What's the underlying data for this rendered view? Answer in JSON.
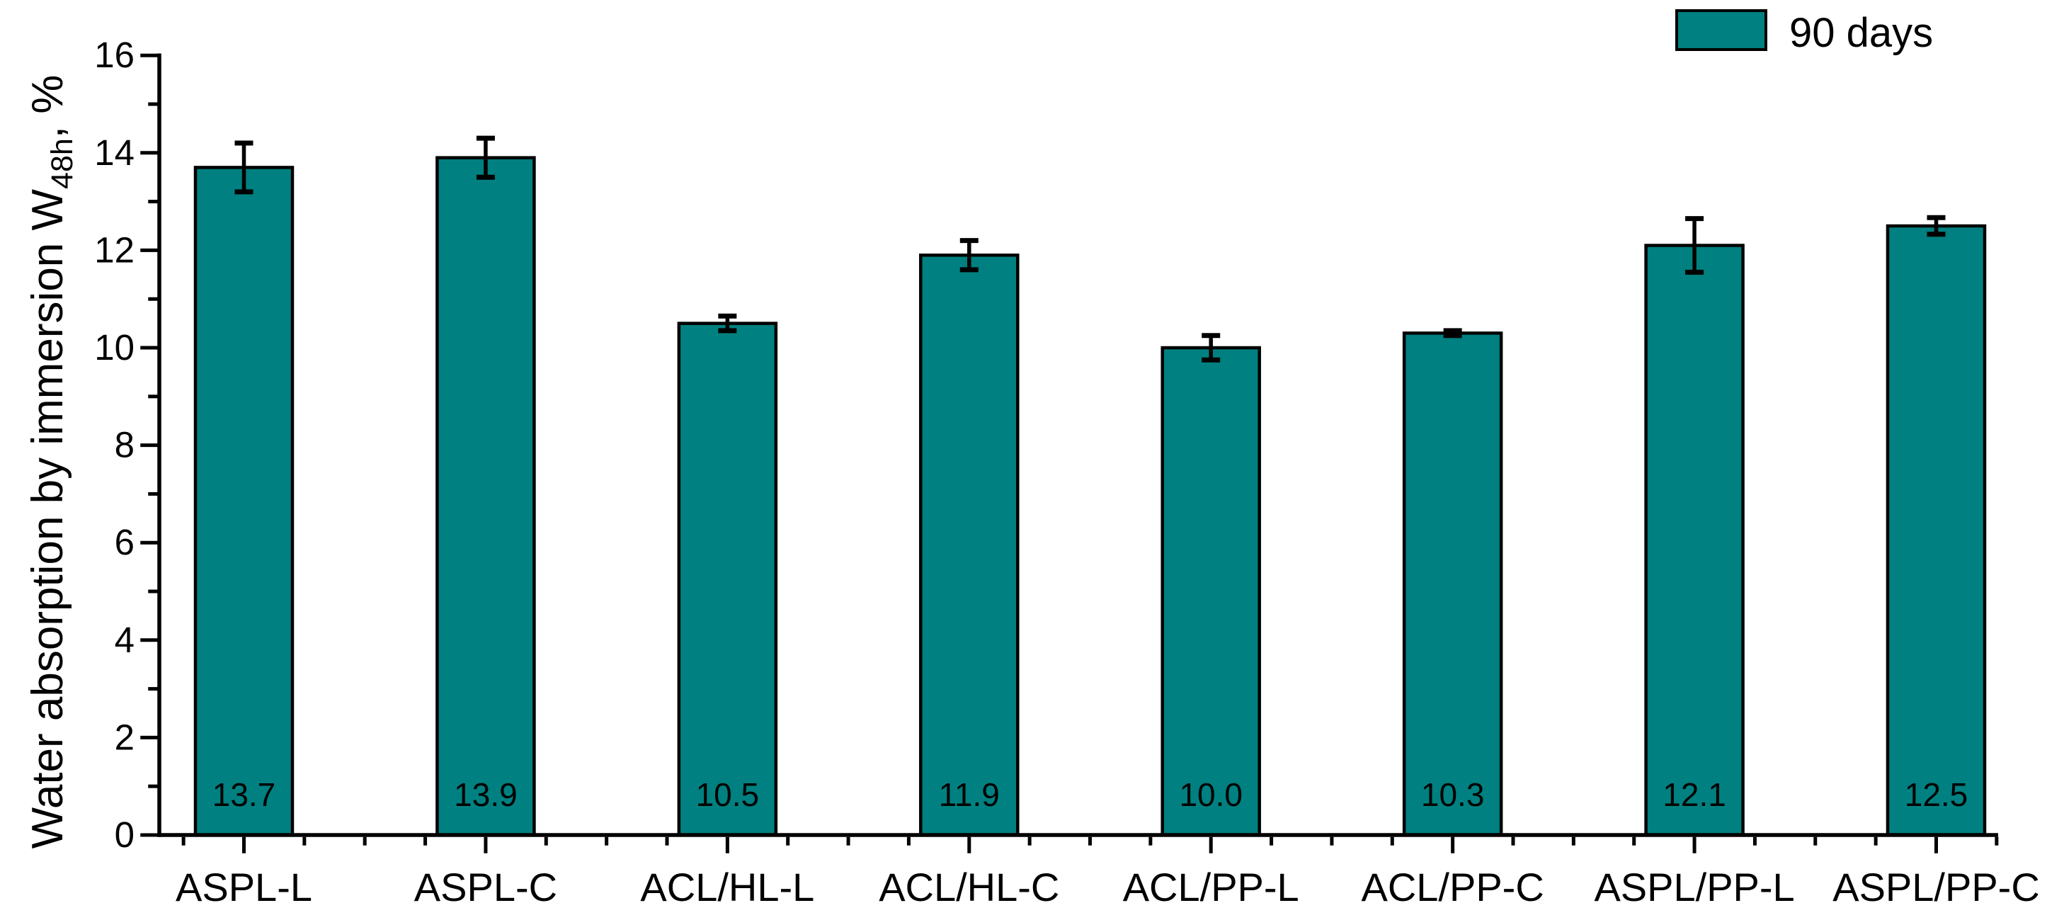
{
  "page": {
    "background_color": "#ffffff",
    "text_color": "#000000"
  },
  "chart_data": {
    "type": "bar",
    "title": "",
    "categories": [
      "ASPL-L",
      "ASPL-C",
      "ACL/HL-L",
      "ACL/HL-C",
      "ACL/PP-L",
      "ACL/PP-C",
      "ASPL/PP-L",
      "ASPL/PP-C"
    ],
    "values": [
      13.7,
      13.9,
      10.5,
      11.9,
      10.0,
      10.3,
      12.1,
      12.5
    ],
    "value_labels": [
      "13.7",
      "13.9",
      "10.5",
      "11.9",
      "10.0",
      "10.3",
      "12.1",
      "12.5"
    ],
    "errors": [
      0.5,
      0.4,
      0.15,
      0.3,
      0.25,
      0.05,
      0.55,
      0.17
    ],
    "series": [
      {
        "name": "90 days",
        "color": "#008080"
      }
    ],
    "legend": {
      "label": "90 days",
      "position": "top-right",
      "swatch_color": "#008080",
      "swatch_border_color": "#000000"
    },
    "ylabel": {
      "prefix": "Water absorption by immersion W",
      "subscript": "48h",
      "suffix": ", %"
    },
    "xlabel": "",
    "ylim": [
      0,
      16
    ],
    "ytick_labels": [
      "0",
      "2",
      "4",
      "6",
      "8",
      "10",
      "12",
      "14",
      "16"
    ],
    "ytick_major_step": 2,
    "ytick_minor_step": 1,
    "xtick_minor_per_category": 4,
    "grid": false,
    "bar_color": "#008080",
    "bar_edge_color": "#000000",
    "error_color": "#000000",
    "axis_color": "#000000"
  }
}
